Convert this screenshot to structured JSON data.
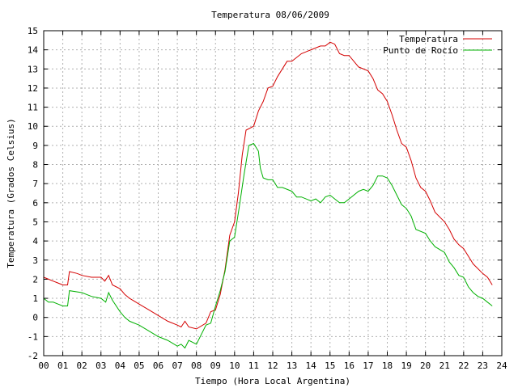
{
  "chart_data": {
    "type": "line",
    "title": "Temperatura 08/06/2009",
    "xlabel": "Tiempo (Hora Local Argentina)",
    "ylabel": "Temperatura (Grados Celsius)",
    "xlim": [
      0,
      24
    ],
    "ylim": [
      -2,
      15
    ],
    "grid": true,
    "legend_position": "top-right",
    "x_ticks": [
      {
        "value": 0,
        "label": "00"
      },
      {
        "value": 1,
        "label": "01"
      },
      {
        "value": 2,
        "label": "02"
      },
      {
        "value": 3,
        "label": "03"
      },
      {
        "value": 4,
        "label": "04"
      },
      {
        "value": 5,
        "label": "05"
      },
      {
        "value": 6,
        "label": "06"
      },
      {
        "value": 7,
        "label": "07"
      },
      {
        "value": 8,
        "label": "08"
      },
      {
        "value": 9,
        "label": "09"
      },
      {
        "value": 10,
        "label": "10"
      },
      {
        "value": 11,
        "label": "11"
      },
      {
        "value": 12,
        "label": "12"
      },
      {
        "value": 13,
        "label": "13"
      },
      {
        "value": 14,
        "label": "14"
      },
      {
        "value": 15,
        "label": "15"
      },
      {
        "value": 16,
        "label": "16"
      },
      {
        "value": 17,
        "label": "17"
      },
      {
        "value": 18,
        "label": "18"
      },
      {
        "value": 19,
        "label": "19"
      },
      {
        "value": 20,
        "label": "20"
      },
      {
        "value": 21,
        "label": "21"
      },
      {
        "value": 22,
        "label": "22"
      },
      {
        "value": 23,
        "label": "23"
      },
      {
        "value": 24,
        "label": "24"
      }
    ],
    "y_ticks": [
      {
        "value": -2,
        "label": "-2"
      },
      {
        "value": -1,
        "label": "-1"
      },
      {
        "value": 0,
        "label": "0"
      },
      {
        "value": 1,
        "label": "1"
      },
      {
        "value": 2,
        "label": "2"
      },
      {
        "value": 3,
        "label": "3"
      },
      {
        "value": 4,
        "label": "4"
      },
      {
        "value": 5,
        "label": "5"
      },
      {
        "value": 6,
        "label": "6"
      },
      {
        "value": 7,
        "label": "7"
      },
      {
        "value": 8,
        "label": "8"
      },
      {
        "value": 9,
        "label": "9"
      },
      {
        "value": 10,
        "label": "10"
      },
      {
        "value": 11,
        "label": "11"
      },
      {
        "value": 12,
        "label": "12"
      },
      {
        "value": 13,
        "label": "13"
      },
      {
        "value": 14,
        "label": "14"
      },
      {
        "value": 15,
        "label": "15"
      }
    ],
    "series": [
      {
        "name": "Temperatura",
        "color": "#d40000",
        "points": [
          [
            0.0,
            2.1
          ],
          [
            0.25,
            2.0
          ],
          [
            0.5,
            1.9
          ],
          [
            0.75,
            1.8
          ],
          [
            1.0,
            1.7
          ],
          [
            1.25,
            1.7
          ],
          [
            1.35,
            2.4
          ],
          [
            1.75,
            2.3
          ],
          [
            2.0,
            2.2
          ],
          [
            2.5,
            2.1
          ],
          [
            3.0,
            2.1
          ],
          [
            3.2,
            1.9
          ],
          [
            3.4,
            2.2
          ],
          [
            3.6,
            1.7
          ],
          [
            4.0,
            1.5
          ],
          [
            4.25,
            1.2
          ],
          [
            4.5,
            1.0
          ],
          [
            5.0,
            0.7
          ],
          [
            5.5,
            0.4
          ],
          [
            6.0,
            0.1
          ],
          [
            6.5,
            -0.2
          ],
          [
            7.0,
            -0.4
          ],
          [
            7.2,
            -0.5
          ],
          [
            7.4,
            -0.2
          ],
          [
            7.6,
            -0.5
          ],
          [
            8.0,
            -0.6
          ],
          [
            8.5,
            -0.3
          ],
          [
            8.75,
            0.3
          ],
          [
            9.0,
            0.4
          ],
          [
            9.25,
            1.2
          ],
          [
            9.5,
            2.5
          ],
          [
            9.75,
            4.3
          ],
          [
            10.0,
            5.0
          ],
          [
            10.2,
            6.5
          ],
          [
            10.4,
            8.5
          ],
          [
            10.6,
            9.8
          ],
          [
            11.0,
            10.0
          ],
          [
            11.25,
            10.8
          ],
          [
            11.5,
            11.3
          ],
          [
            11.75,
            12.0
          ],
          [
            12.0,
            12.1
          ],
          [
            12.25,
            12.6
          ],
          [
            12.5,
            13.0
          ],
          [
            12.75,
            13.4
          ],
          [
            13.0,
            13.4
          ],
          [
            13.5,
            13.8
          ],
          [
            14.0,
            14.0
          ],
          [
            14.5,
            14.2
          ],
          [
            14.75,
            14.2
          ],
          [
            15.0,
            14.4
          ],
          [
            15.25,
            14.3
          ],
          [
            15.5,
            13.8
          ],
          [
            15.75,
            13.7
          ],
          [
            16.0,
            13.7
          ],
          [
            16.5,
            13.1
          ],
          [
            17.0,
            12.9
          ],
          [
            17.25,
            12.5
          ],
          [
            17.5,
            11.9
          ],
          [
            17.75,
            11.7
          ],
          [
            18.0,
            11.3
          ],
          [
            18.25,
            10.6
          ],
          [
            18.5,
            9.8
          ],
          [
            18.75,
            9.1
          ],
          [
            19.0,
            8.9
          ],
          [
            19.25,
            8.2
          ],
          [
            19.5,
            7.3
          ],
          [
            19.75,
            6.8
          ],
          [
            20.0,
            6.6
          ],
          [
            20.25,
            6.1
          ],
          [
            20.5,
            5.5
          ],
          [
            21.0,
            5.0
          ],
          [
            21.25,
            4.6
          ],
          [
            21.5,
            4.1
          ],
          [
            21.75,
            3.8
          ],
          [
            22.0,
            3.6
          ],
          [
            22.25,
            3.2
          ],
          [
            22.5,
            2.8
          ],
          [
            23.0,
            2.3
          ],
          [
            23.25,
            2.1
          ],
          [
            23.5,
            1.7
          ]
        ]
      },
      {
        "name": "Punto de Rocío",
        "color": "#00b000",
        "points": [
          [
            0.0,
            1.0
          ],
          [
            0.25,
            0.8
          ],
          [
            0.5,
            0.8
          ],
          [
            0.75,
            0.7
          ],
          [
            1.0,
            0.6
          ],
          [
            1.25,
            0.6
          ],
          [
            1.35,
            1.4
          ],
          [
            2.0,
            1.3
          ],
          [
            2.5,
            1.1
          ],
          [
            3.0,
            1.0
          ],
          [
            3.25,
            0.8
          ],
          [
            3.4,
            1.3
          ],
          [
            3.6,
            0.9
          ],
          [
            4.0,
            0.3
          ],
          [
            4.25,
            0.0
          ],
          [
            4.5,
            -0.2
          ],
          [
            5.0,
            -0.4
          ],
          [
            5.5,
            -0.7
          ],
          [
            6.0,
            -1.0
          ],
          [
            6.5,
            -1.2
          ],
          [
            7.0,
            -1.5
          ],
          [
            7.2,
            -1.4
          ],
          [
            7.4,
            -1.6
          ],
          [
            7.6,
            -1.2
          ],
          [
            8.0,
            -1.4
          ],
          [
            8.5,
            -0.4
          ],
          [
            8.75,
            -0.3
          ],
          [
            9.0,
            0.6
          ],
          [
            9.25,
            1.4
          ],
          [
            9.5,
            2.4
          ],
          [
            9.75,
            4.0
          ],
          [
            10.0,
            4.2
          ],
          [
            10.25,
            5.8
          ],
          [
            10.5,
            7.5
          ],
          [
            10.75,
            9.0
          ],
          [
            11.0,
            9.1
          ],
          [
            11.25,
            8.7
          ],
          [
            11.35,
            7.8
          ],
          [
            11.5,
            7.3
          ],
          [
            11.75,
            7.2
          ],
          [
            12.0,
            7.2
          ],
          [
            12.25,
            6.8
          ],
          [
            12.5,
            6.8
          ],
          [
            13.0,
            6.6
          ],
          [
            13.25,
            6.3
          ],
          [
            13.5,
            6.3
          ],
          [
            14.0,
            6.1
          ],
          [
            14.25,
            6.2
          ],
          [
            14.5,
            6.0
          ],
          [
            14.75,
            6.3
          ],
          [
            15.0,
            6.4
          ],
          [
            15.25,
            6.2
          ],
          [
            15.5,
            6.0
          ],
          [
            15.75,
            6.0
          ],
          [
            16.0,
            6.2
          ],
          [
            16.5,
            6.6
          ],
          [
            16.75,
            6.7
          ],
          [
            17.0,
            6.6
          ],
          [
            17.25,
            6.9
          ],
          [
            17.5,
            7.4
          ],
          [
            17.75,
            7.4
          ],
          [
            18.0,
            7.3
          ],
          [
            18.25,
            6.9
          ],
          [
            18.5,
            6.4
          ],
          [
            18.75,
            5.9
          ],
          [
            19.0,
            5.7
          ],
          [
            19.25,
            5.3
          ],
          [
            19.5,
            4.6
          ],
          [
            20.0,
            4.4
          ],
          [
            20.25,
            4.0
          ],
          [
            20.5,
            3.7
          ],
          [
            21.0,
            3.4
          ],
          [
            21.25,
            2.9
          ],
          [
            21.5,
            2.6
          ],
          [
            21.75,
            2.2
          ],
          [
            22.0,
            2.1
          ],
          [
            22.25,
            1.6
          ],
          [
            22.5,
            1.3
          ],
          [
            22.75,
            1.1
          ],
          [
            23.0,
            1.0
          ],
          [
            23.25,
            0.8
          ],
          [
            23.5,
            0.6
          ]
        ]
      }
    ]
  }
}
